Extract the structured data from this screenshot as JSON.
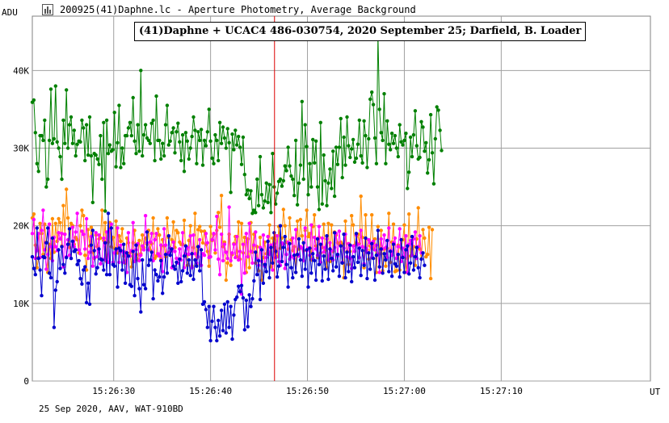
{
  "window": {
    "title": "200925(41)Daphne.lc - Aperture Photometry, Average Background",
    "icon": "light-curve-icon"
  },
  "footer": {
    "note": "25 Sep 2020, AAV, WAT-910BD"
  },
  "chart_data": {
    "type": "line",
    "title": "(41)Daphne + UCAC4 486-030754, 2020 September 25;  Darfield, B. Loader",
    "ylabel": "ADU",
    "xlabel": "UT",
    "ylim": [
      0,
      47000
    ],
    "xlim": [
      "15:26:21.6",
      "15:27:25.4"
    ],
    "y_ticks": [
      {
        "value": 0,
        "label": "0"
      },
      {
        "value": 10000,
        "label": "10K"
      },
      {
        "value": 20000,
        "label": "20K"
      },
      {
        "value": 30000,
        "label": "30K"
      },
      {
        "value": 40000,
        "label": "40K"
      }
    ],
    "x_ticks": [
      {
        "value": "15:26:30",
        "label": "15:26:30"
      },
      {
        "value": "15:26:40",
        "label": "15:26:40"
      },
      {
        "value": "15:26:50",
        "label": "15:26:50"
      },
      {
        "value": "15:27:00",
        "label": "15:27:00"
      },
      {
        "value": "15:27:10",
        "label": "15:27:10"
      }
    ],
    "grid": true,
    "marker_line": {
      "x": "15:26:46.6",
      "color": "#dd0000"
    },
    "series": [
      {
        "color": "#008000",
        "x_start": "15:26:21.6",
        "x_step": 0.16,
        "values": [
          35900,
          36200,
          32000,
          28000,
          27000,
          31600,
          31600,
          31000,
          33600,
          25000,
          26000,
          31000,
          37600,
          30600,
          31200,
          38000,
          30800,
          30000,
          28900,
          26000,
          33600,
          30600,
          37500,
          30000,
          33000,
          34000,
          30600,
          32300,
          29000,
          30500,
          30900,
          30800,
          33600,
          32600,
          28400,
          33000,
          29100,
          34000,
          29000,
          23000,
          29300,
          29100,
          28600,
          27900,
          31600,
          26000,
          33300,
          21900,
          33600,
          29300,
          30400,
          29600,
          29800,
          34600,
          27600,
          30700,
          35500,
          27500,
          30000,
          28000,
          31600,
          31600,
          32600,
          33300,
          31600,
          36500,
          30900,
          29300,
          33000,
          29600,
          40000,
          29000,
          31700,
          33000,
          31300,
          31000,
          30600,
          33200,
          33600,
          28400,
          36700,
          31000,
          31000,
          28600,
          30600,
          29000,
          33000,
          35500,
          30400,
          30900,
          32000,
          32600,
          29400,
          32100,
          33200,
          30800,
          28400,
          31700,
          27000,
          32000,
          30900,
          28600,
          30000,
          31500,
          34000,
          32300,
          28000,
          32100,
          31000,
          32400,
          27800,
          31000,
          30300,
          32100,
          35000,
          30900,
          28700,
          28000,
          31700,
          31000,
          28400,
          33300,
          30600,
          32700,
          31300,
          30000,
          32500,
          30700,
          24300,
          31800,
          29800,
          32300,
          30400,
          31500,
          30100,
          27900,
          31400,
          26600,
          24000,
          24600,
          23500,
          24500,
          21600,
          22000,
          21700,
          26000,
          22600,
          28900,
          24000,
          22300,
          23200,
          25500,
          23000,
          25300,
          21700,
          29300,
          25000,
          22800,
          24200,
          25700,
          26000,
          25100,
          25800,
          27700,
          27100,
          30100,
          27700,
          26400,
          26000,
          23900,
          31000,
          22700,
          25500,
          27800,
          36000,
          26000,
          33000,
          30200,
          24000,
          28000,
          25000,
          31100,
          28100,
          30900,
          25000,
          22100,
          33300,
          22800,
          29100,
          25800,
          22600,
          25500,
          27300,
          24800,
          29600,
          23800,
          30100,
          27900,
          30100,
          33800,
          26200,
          31400,
          27800,
          34000,
          30300,
          28800,
          29900,
          31100,
          28200,
          28700,
          30500,
          33600,
          29000,
          28100,
          33500,
          31600,
          27500,
          31200,
          36300,
          37200,
          35600,
          31300,
          28000,
          44600,
          35000,
          32000,
          31000,
          37000,
          28000,
          33500,
          30500,
          29800,
          31900,
          30600,
          31600,
          30000,
          28900,
          33000,
          30800,
          30400,
          31000,
          31900,
          24800,
          26900,
          31400,
          28900,
          31700,
          34800,
          30300,
          28600,
          28800,
          33400,
          32700,
          29600,
          30700,
          26800,
          28500,
          34300,
          29400,
          25400,
          31200,
          35300,
          34900,
          32300,
          29700
        ]
      },
      {
        "color": "#ff8c00",
        "x_start": "15:26:21.6",
        "x_step": 0.16,
        "values": [
          21000,
          21500,
          17500,
          14600,
          15900,
          20300,
          19000,
          16300,
          20200,
          17900,
          14000,
          17600,
          15800,
          20900,
          16600,
          20300,
          18000,
          20900,
          20400,
          17400,
          22600,
          18900,
          24700,
          21000,
          17200,
          20300,
          20000,
          17600,
          18500,
          18200,
          16500,
          20000,
          22000,
          21300,
          16200,
          14300,
          19500,
          17400,
          19800,
          16600,
          15800,
          18800,
          17300,
          18300,
          18400,
          22000,
          18100,
          20400,
          15400,
          17900,
          20400,
          17300,
          18500,
          17100,
          20600,
          16500,
          18700,
          18000,
          19600,
          16100,
          15200,
          18400,
          17800,
          16500,
          14700,
          17800,
          19400,
          16300,
          15600,
          18100,
          16400,
          18800,
          17200,
          18400,
          17600,
          19400,
          16900,
          17700,
          21000,
          15800,
          16100,
          19600,
          18800,
          15700,
          18200,
          17400,
          16000,
          21000,
          18500,
          16700,
          18200,
          20500,
          17200,
          19400,
          19100,
          17900,
          17600,
          17600,
          20700,
          16200,
          14900,
          18100,
          20000,
          14800,
          17200,
          21600,
          15000,
          19500,
          19900,
          19300,
          17800,
          19300,
          17600,
          16700,
          14800,
          19900,
          18100,
          18900,
          16500,
          19400,
          21700,
          19800,
          23900,
          17300,
          17900,
          13000,
          15200,
          18900,
          14900,
          16300,
          17700,
          18600,
          16000,
          20500,
          15700,
          20300,
          16500,
          18500,
          14000,
          18300,
          14600,
          20400,
          16600,
          18900,
          15200,
          17300,
          14200,
          18500,
          13000,
          15900,
          17900,
          16400,
          16400,
          20100,
          14700,
          18400,
          17300,
          18700,
          16000,
          19900,
          17100,
          18400,
          22100,
          20000,
          17900,
          17000,
          21000,
          18200,
          16800,
          17300,
          14000,
          20600,
          17000,
          20800,
          18700,
          16800,
          19400,
          22000,
          18600,
          19000,
          15600,
          19900,
          21400,
          17400,
          15900,
          18500,
          16500,
          17200,
          20200,
          16800,
          14600,
          20300,
          15400,
          20100,
          16700,
          19200,
          18800,
          17800,
          17600,
          17900,
          17600,
          13300,
          20600,
          16700,
          15000,
          16700,
          21300,
          20100,
          17500,
          17800,
          18900,
          17700,
          23800,
          18500,
          14600,
          21400,
          16900,
          15700,
          17400,
          21400,
          17000,
          18300,
          14000,
          19900,
          16400,
          19400,
          14200,
          17000,
          14800,
          17100,
          21600,
          15300,
          17900,
          20200,
          14100,
          14200,
          17500,
          14300,
          17100,
          18200,
          20100,
          14000,
          15800,
          21500,
          16100,
          17000,
          17300,
          14900,
          18300,
          22300,
          17000,
          15700,
          19500,
          18400,
          16000,
          16300,
          19800,
          13200,
          19500
        ]
      },
      {
        "color": "#ff00ff",
        "x_start": "15:26:21.6",
        "x_step": 0.16,
        "values": [
          19000,
          20800,
          15800,
          16800,
          19000,
          15900,
          19400,
          22000,
          16900,
          14400,
          16300,
          20200,
          17300,
          15500,
          18500,
          17300,
          16800,
          19100,
          18300,
          19000,
          14700,
          18900,
          16000,
          18200,
          16200,
          15800,
          19800,
          17300,
          19200,
          21600,
          16900,
          16400,
          19300,
          18900,
          17000,
          20900,
          15800,
          16600,
          18600,
          14800,
          15900,
          19100,
          16000,
          18800,
          15100,
          15700,
          18400,
          15600,
          19200,
          15300,
          19500,
          20200,
          15300,
          16500,
          16800,
          19700,
          15300,
          17500,
          16700,
          15300,
          16600,
          14000,
          19100,
          16100,
          16800,
          20400,
          15400,
          16900,
          17700,
          15500,
          16200,
          17400,
          16900,
          21300,
          17800,
          16900,
          17900,
          19000,
          15500,
          18200,
          19000,
          16400,
          16100,
          17500,
          14100,
          19600,
          17500,
          16400,
          16500,
          17100,
          14600,
          17900,
          16700,
          15800,
          15200,
          17000,
          15600,
          19100,
          14600,
          16400,
          17200,
          16300,
          18700,
          14600,
          18800,
          16400,
          15200,
          16000,
          18200,
          14900,
          16400,
          16200,
          19000,
          17800,
          15900,
          16000,
          18200,
          19000,
          16900,
          21200,
          15700,
          13700,
          18900,
          15500,
          17600,
          16600,
          15800,
          22400,
          15500,
          16500,
          17600,
          15900,
          18600,
          15600,
          16700,
          11200,
          17600,
          13900,
          19000,
          16000,
          20300,
          16700,
          15200,
          17500,
          19200,
          15700,
          14900,
          17200,
          15400,
          18800,
          14800,
          15900,
          18600,
          16300,
          17500,
          14300,
          17700,
          15900,
          18700,
          15400,
          14900,
          17800,
          17600,
          14500,
          16300,
          17900,
          15700,
          16000,
          18400,
          15800,
          19500,
          16300,
          16100,
          17300,
          17100,
          15500,
          19700,
          16800,
          17100,
          16200,
          20100,
          15700,
          18500,
          17000,
          16200,
          19900,
          15300,
          18400,
          16600,
          17200,
          18300,
          15600,
          17800,
          16800,
          15600,
          17200,
          19000,
          16100,
          19300,
          17400,
          15300,
          17100,
          18900,
          16000,
          17700,
          15800,
          14500,
          17400,
          16700,
          18800,
          17600,
          15900,
          19400,
          17300,
          15100,
          17100,
          16600,
          18200,
          17800,
          15900,
          18000,
          16900,
          17500,
          16300,
          14000,
          18300,
          17000,
          18800,
          17200,
          15900,
          19700,
          16800,
          16200,
          17800,
          18400,
          15800,
          17300,
          19600,
          15400,
          17100,
          16000,
          18700,
          14000,
          17600,
          18100,
          16200,
          18300,
          19200,
          15800,
          17300,
          18700,
          16500
        ]
      },
      {
        "color": "#0000cd",
        "x_start": "15:26:21.6",
        "x_step": 0.16,
        "values": [
          16000,
          14500,
          13700,
          19700,
          15800,
          14300,
          11000,
          16000,
          15900,
          17800,
          19700,
          13900,
          13300,
          18400,
          6900,
          11700,
          12800,
          16900,
          14500,
          17300,
          15000,
          13900,
          15900,
          17600,
          19600,
          15800,
          18000,
          16700,
          16900,
          15000,
          15500,
          13200,
          12500,
          14300,
          14700,
          10100,
          12600,
          9900,
          17500,
          19400,
          16800,
          13800,
          14600,
          17000,
          15700,
          15600,
          14300,
          17800,
          13700,
          21600,
          13700,
          19700,
          15000,
          14800,
          17000,
          12100,
          17100,
          16800,
          14300,
          17600,
          12600,
          16500,
          16100,
          12400,
          12200,
          16700,
          11000,
          17500,
          13200,
          11900,
          8900,
          15600,
          12400,
          11900,
          19200,
          14900,
          15600,
          16600,
          10600,
          14300,
          13700,
          12900,
          13400,
          15500,
          11300,
          13400,
          16300,
          13900,
          18700,
          16200,
          17000,
          14800,
          14400,
          15300,
          12600,
          15700,
          12800,
          14200,
          16100,
          17400,
          13900,
          15600,
          13600,
          16400,
          13100,
          15600,
          14800,
          17300,
          14200,
          16900,
          9900,
          10200,
          9200,
          6900,
          9600,
          5200,
          7700,
          9600,
          6900,
          5200,
          7800,
          5800,
          9100,
          6500,
          9900,
          6200,
          10200,
          6900,
          9600,
          5400,
          8500,
          10500,
          10800,
          12200,
          11500,
          12300,
          10700,
          6600,
          10400,
          7000,
          11100,
          9600,
          10600,
          12900,
          16600,
          13700,
          15500,
          10500,
          16900,
          12600,
          15000,
          14100,
          18000,
          13300,
          17200,
          15200,
          19100,
          16700,
          13400,
          14800,
          20000,
          15400,
          17200,
          18600,
          15000,
          12100,
          17700,
          14600,
          13300,
          16200,
          14000,
          16300,
          18300,
          15600,
          13500,
          17800,
          14400,
          16900,
          12100,
          17100,
          13900,
          16400,
          15500,
          13000,
          18300,
          15000,
          17600,
          12900,
          16100,
          14400,
          18700,
          13100,
          17000,
          15800,
          14200,
          19100,
          14700,
          16300,
          13500,
          17400,
          15200,
          18900,
          13300,
          16600,
          14100,
          17500,
          12800,
          16000,
          14600,
          19000,
          15300,
          17100,
          13600,
          16800,
          14900,
          18400,
          13200,
          16500,
          14400,
          17700,
          15800,
          13000,
          16200,
          19400,
          14700,
          17000,
          13900,
          16400,
          15600,
          18100,
          14100,
          16700,
          13500,
          17600,
          15100,
          14800,
          16300,
          13400,
          18200,
          15900,
          14000,
          16900,
          17400,
          13800,
          15200,
          18600,
          14300,
          16000,
          17200,
          14600,
          13300,
          15700,
          16500,
          14900
        ]
      }
    ]
  }
}
